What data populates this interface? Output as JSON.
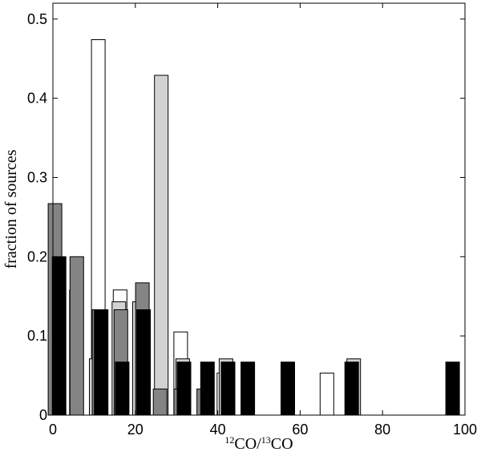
{
  "chart_data": {
    "type": "bar",
    "title": "",
    "xlabel": {
      "sup1": "12",
      "text1": "CO/",
      "sup2": "13",
      "text2": "CO"
    },
    "ylabel": "fraction of sources",
    "xlim": [
      0,
      100
    ],
    "ylim": [
      0,
      0.52
    ],
    "xticks": [
      "0",
      "20",
      "40",
      "60",
      "80",
      "100"
    ],
    "yticks": [
      "0",
      "0.1",
      "0.2",
      "0.3",
      "0.4",
      "0.5"
    ],
    "grid": false,
    "bar_width": 3.3,
    "series": [
      {
        "style": "white",
        "fill": "#ffffff",
        "stroke": "#000000",
        "bars": [
          {
            "x": 5.7,
            "y": 0.158
          },
          {
            "x": 11.0,
            "y": 0.474
          },
          {
            "x": 16.3,
            "y": 0.158
          },
          {
            "x": 21.7,
            "y": 0.053
          },
          {
            "x": 31.0,
            "y": 0.105
          },
          {
            "x": 41.5,
            "y": 0.053
          },
          {
            "x": 66.5,
            "y": 0.053
          }
        ]
      },
      {
        "style": "light-gray",
        "fill": "#d2d2d2",
        "stroke": "#000000",
        "bars": [
          {
            "x": 10.5,
            "y": 0.071
          },
          {
            "x": 16.0,
            "y": 0.143
          },
          {
            "x": 21.0,
            "y": 0.143
          },
          {
            "x": 26.3,
            "y": 0.429
          },
          {
            "x": 31.5,
            "y": 0.071
          },
          {
            "x": 42.0,
            "y": 0.071
          },
          {
            "x": 73.0,
            "y": 0.071
          }
        ]
      },
      {
        "style": "dark-gray",
        "fill": "#848484",
        "stroke": "#000000",
        "bars": [
          {
            "x": 0.5,
            "y": 0.267
          },
          {
            "x": 5.8,
            "y": 0.2
          },
          {
            "x": 11.2,
            "y": 0.133
          },
          {
            "x": 16.5,
            "y": 0.133
          },
          {
            "x": 21.7,
            "y": 0.167
          },
          {
            "x": 26.0,
            "y": 0.033
          },
          {
            "x": 31.0,
            "y": 0.033
          },
          {
            "x": 36.6,
            "y": 0.033
          }
        ]
      },
      {
        "style": "black",
        "fill": "#000000",
        "stroke": "#000000",
        "bars": [
          {
            "x": 1.5,
            "y": 0.2
          },
          {
            "x": 11.7,
            "y": 0.133
          },
          {
            "x": 16.8,
            "y": 0.067
          },
          {
            "x": 22.0,
            "y": 0.133
          },
          {
            "x": 31.8,
            "y": 0.067
          },
          {
            "x": 37.5,
            "y": 0.067
          },
          {
            "x": 42.5,
            "y": 0.067
          },
          {
            "x": 47.3,
            "y": 0.067
          },
          {
            "x": 57.0,
            "y": 0.067
          },
          {
            "x": 72.5,
            "y": 0.067
          },
          {
            "x": 97.0,
            "y": 0.067
          }
        ]
      }
    ]
  }
}
